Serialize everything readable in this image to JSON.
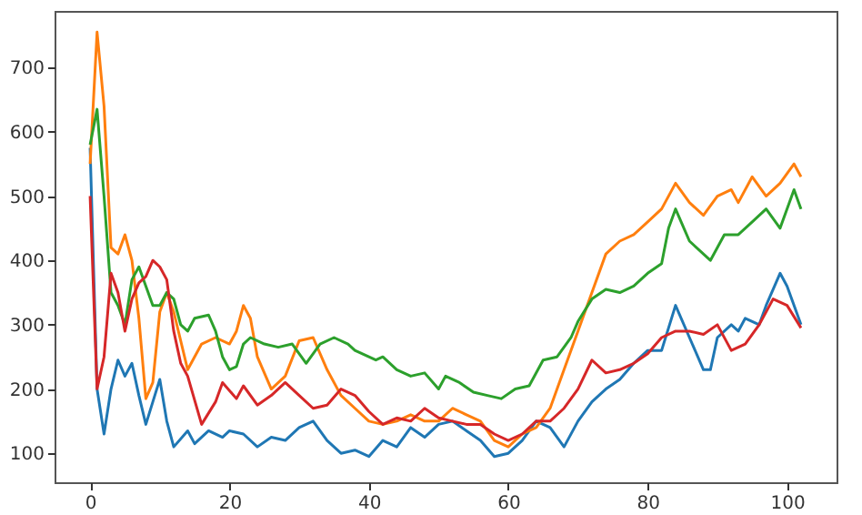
{
  "chart_data": {
    "type": "line",
    "xlim": [
      -5.1,
      107.1
    ],
    "ylim": [
      55,
      788
    ],
    "xticks": [
      0,
      20,
      40,
      60,
      80,
      100
    ],
    "yticks": [
      100,
      200,
      300,
      400,
      500,
      600,
      700
    ],
    "grid": false,
    "legend": false,
    "series": [
      {
        "color": "#1f77b4",
        "x": [
          0,
          1,
          2,
          3,
          4,
          5,
          6,
          7,
          8,
          9,
          10,
          11,
          12,
          14,
          15,
          17,
          19,
          20,
          22,
          24,
          26,
          28,
          30,
          32,
          34,
          36,
          38,
          40,
          42,
          44,
          46,
          48,
          50,
          52,
          54,
          56,
          58,
          60,
          62,
          64,
          66,
          68,
          70,
          72,
          74,
          76,
          78,
          80,
          82,
          84,
          86,
          88,
          89,
          90,
          92,
          93,
          94,
          96,
          97,
          99,
          100,
          102
        ],
        "values": [
          575,
          200,
          130,
          200,
          245,
          220,
          240,
          190,
          145,
          180,
          215,
          150,
          110,
          135,
          115,
          135,
          125,
          135,
          130,
          110,
          125,
          120,
          140,
          150,
          120,
          100,
          105,
          95,
          120,
          110,
          140,
          125,
          145,
          150,
          135,
          120,
          95,
          100,
          120,
          150,
          140,
          110,
          150,
          180,
          200,
          215,
          240,
          260,
          260,
          330,
          280,
          230,
          230,
          280,
          300,
          290,
          310,
          300,
          330,
          380,
          360,
          300
        ]
      },
      {
        "color": "#ff7f0e",
        "x": [
          0,
          1,
          2,
          3,
          4,
          5,
          6,
          7,
          8,
          9,
          10,
          11,
          12,
          14,
          16,
          18,
          20,
          21,
          22,
          23,
          24,
          26,
          28,
          30,
          32,
          34,
          36,
          38,
          40,
          42,
          44,
          46,
          48,
          50,
          52,
          54,
          56,
          58,
          60,
          62,
          64,
          66,
          68,
          70,
          72,
          74,
          76,
          78,
          80,
          82,
          84,
          86,
          88,
          90,
          92,
          93,
          95,
          97,
          99,
          101,
          102
        ],
        "values": [
          550,
          755,
          640,
          420,
          410,
          440,
          400,
          310,
          185,
          210,
          320,
          350,
          320,
          230,
          270,
          280,
          270,
          290,
          330,
          310,
          250,
          200,
          220,
          275,
          280,
          230,
          190,
          170,
          150,
          145,
          150,
          160,
          150,
          150,
          170,
          160,
          150,
          120,
          110,
          130,
          140,
          170,
          230,
          290,
          350,
          410,
          430,
          440,
          460,
          480,
          520,
          490,
          470,
          500,
          510,
          490,
          530,
          500,
          520,
          550,
          530
        ]
      },
      {
        "color": "#2ca02c",
        "x": [
          0,
          1,
          2,
          3,
          4,
          5,
          6,
          7,
          8,
          9,
          10,
          11,
          12,
          13,
          14,
          15,
          17,
          18,
          19,
          20,
          21,
          22,
          23,
          25,
          27,
          29,
          31,
          33,
          35,
          37,
          38,
          40,
          41,
          42,
          44,
          46,
          48,
          50,
          51,
          53,
          55,
          57,
          59,
          61,
          63,
          65,
          67,
          69,
          70,
          72,
          74,
          76,
          78,
          80,
          82,
          83,
          84,
          86,
          88,
          89,
          91,
          93,
          95,
          97,
          99,
          101,
          102
        ],
        "values": [
          580,
          635,
          500,
          350,
          330,
          300,
          370,
          390,
          360,
          330,
          330,
          350,
          340,
          300,
          290,
          310,
          315,
          290,
          250,
          230,
          235,
          270,
          280,
          270,
          265,
          270,
          240,
          270,
          280,
          270,
          260,
          250,
          245,
          250,
          230,
          220,
          225,
          200,
          220,
          210,
          195,
          190,
          185,
          200,
          205,
          245,
          250,
          280,
          305,
          340,
          355,
          350,
          360,
          380,
          395,
          450,
          480,
          430,
          410,
          400,
          440,
          440,
          460,
          480,
          450,
          510,
          480
        ]
      },
      {
        "color": "#d62728",
        "x": [
          0,
          1,
          2,
          3,
          4,
          5,
          6,
          7,
          8,
          9,
          10,
          11,
          12,
          13,
          14,
          16,
          18,
          19,
          21,
          22,
          24,
          26,
          28,
          30,
          32,
          34,
          36,
          38,
          40,
          42,
          44,
          46,
          48,
          50,
          52,
          54,
          56,
          58,
          60,
          62,
          64,
          66,
          68,
          70,
          72,
          74,
          76,
          78,
          80,
          82,
          84,
          86,
          88,
          90,
          92,
          94,
          96,
          98,
          100,
          102
        ],
        "values": [
          500,
          200,
          250,
          380,
          350,
          290,
          340,
          365,
          375,
          400,
          390,
          370,
          290,
          240,
          220,
          145,
          180,
          210,
          185,
          205,
          175,
          190,
          210,
          190,
          170,
          175,
          200,
          190,
          165,
          145,
          155,
          150,
          170,
          155,
          150,
          145,
          145,
          130,
          120,
          130,
          150,
          150,
          170,
          200,
          245,
          225,
          230,
          240,
          255,
          280,
          290,
          290,
          285,
          300,
          260,
          270,
          300,
          340,
          330,
          295
        ]
      }
    ]
  }
}
